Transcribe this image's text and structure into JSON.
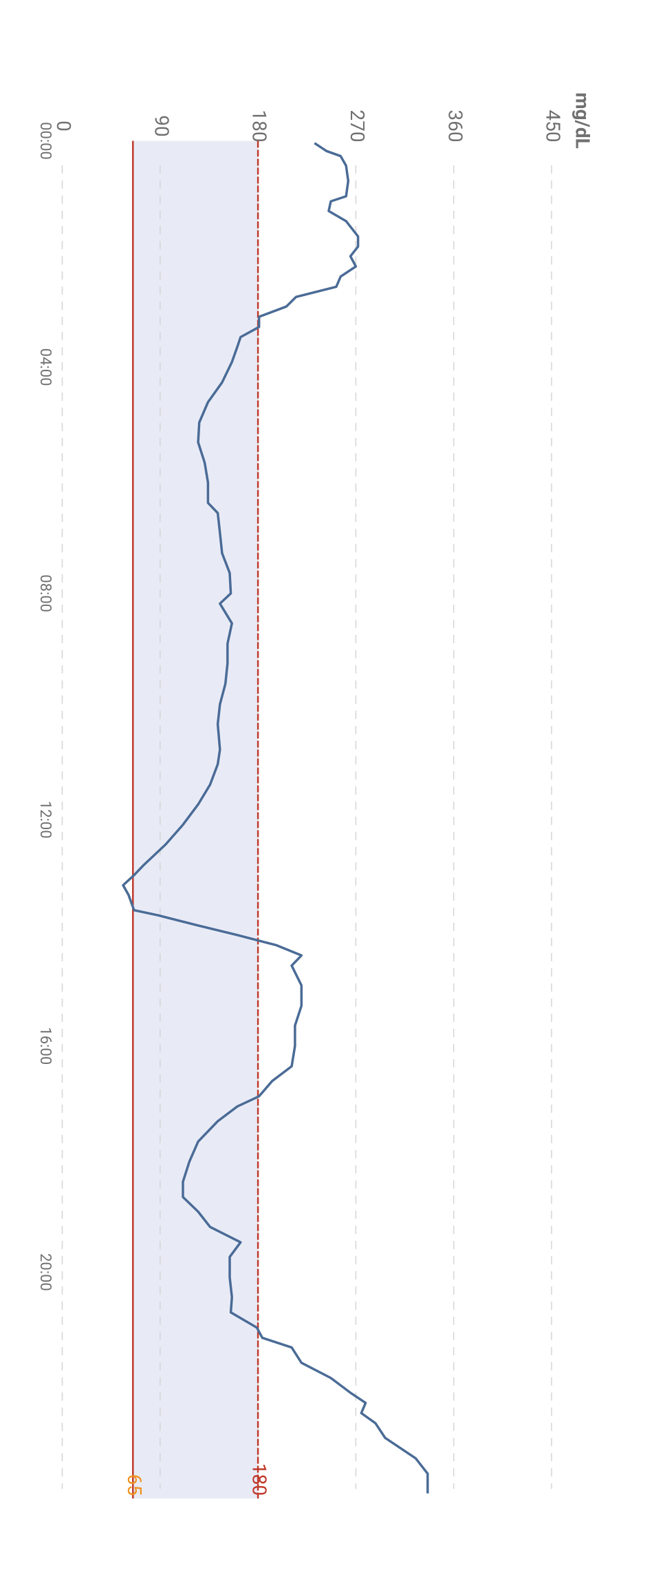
{
  "chart_data": {
    "type": "line",
    "y_label": "mg/dL",
    "color": "#4a6b96",
    "x": [
      0.04,
      0.18,
      0.27,
      0.44,
      0.71,
      0.98,
      1.07,
      1.24,
      1.42,
      1.69,
      1.87,
      2.04,
      2.22,
      2.4,
      2.58,
      2.76,
      2.93,
      3.11,
      3.29,
      3.47,
      3.64,
      3.91,
      4.27,
      4.62,
      4.98,
      5.33,
      5.69,
      6.04,
      6.4,
      6.58,
      6.93,
      7.29,
      7.64,
      8,
      8.18,
      8.53,
      8.89,
      9.24,
      9.6,
      9.96,
      10.31,
      10.76,
      11.02,
      11.38,
      11.73,
      12.09,
      12.44,
      12.8,
      12.98,
      13.16,
      13.33,
      13.6,
      13.69,
      13.87,
      14.04,
      14.22,
      14.4,
      14.58,
      14.93,
      15.29,
      15.64,
      16,
      16.36,
      16.62,
      16.89,
      17.07,
      17.33,
      17.69,
      18.04,
      18.4,
      18.67,
      18.93,
      19.2,
      19.47,
      19.73,
      20.09,
      20.44,
      20.71,
      20.98,
      21.16,
      21.33,
      21.6,
      21.87,
      22.13,
      22.31,
      22.49,
      22.67,
      22.93,
      23.29,
      23.56,
      23.73,
      23.91
    ],
    "values": [
      232,
      243,
      256,
      261,
      263,
      261,
      247,
      245,
      261,
      272,
      272,
      265,
      270,
      256,
      252,
      215,
      206,
      181,
      181,
      164,
      161,
      156,
      147,
      134,
      126,
      125,
      131,
      134,
      134,
      143,
      145,
      147,
      154,
      155,
      145,
      156,
      152,
      152,
      150,
      145,
      143,
      145,
      143,
      136,
      125,
      111,
      95,
      75,
      66,
      56,
      61,
      66,
      88,
      125,
      161,
      197,
      220,
      211,
      220,
      220,
      214,
      214,
      211,
      193,
      181,
      161,
      143,
      125,
      117,
      111,
      111,
      125,
      136,
      164,
      154,
      154,
      156,
      155,
      179,
      184,
      211,
      220,
      247,
      265,
      279,
      275,
      288,
      297,
      325,
      336,
      336,
      336
    ],
    "xlim": [
      0,
      24
    ],
    "xticks": [
      {
        "value": 0,
        "label": "00:00"
      },
      {
        "value": 4,
        "label": "04:00"
      },
      {
        "value": 8,
        "label": "08:00"
      },
      {
        "value": 12,
        "label": "12:00"
      },
      {
        "value": 16,
        "label": "16:00"
      },
      {
        "value": 20,
        "label": "20:00"
      }
    ],
    "ylim": [
      0,
      450
    ],
    "yticks": [
      0,
      90,
      180,
      270,
      360,
      450
    ],
    "target_range": [
      65,
      180
    ],
    "target_color": "#e8ebf6",
    "reference_lines": [
      {
        "value": 65,
        "color": "#c0392b",
        "label_color": "#f0901e",
        "dashed": false
      },
      {
        "value": 180,
        "color": "#c0392b",
        "label_color": "#c0392b",
        "dashed": true
      }
    ]
  }
}
